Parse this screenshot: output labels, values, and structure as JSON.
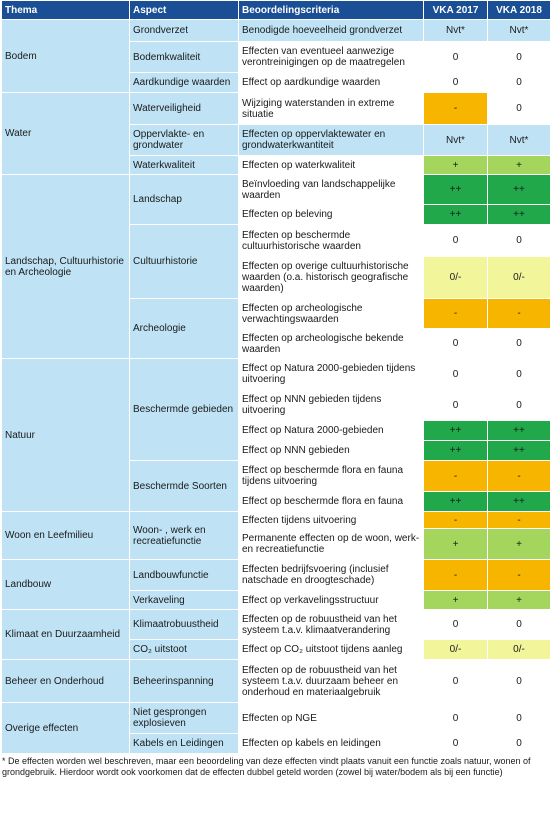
{
  "headers": {
    "thema": "Thema",
    "aspect": "Aspect",
    "criteria": "Beoordelingscriteria",
    "vka2017": "VKA 2017",
    "vka2018": "VKA 2018"
  },
  "colors": {
    "header": "#1a4e95",
    "light_blue": "#bfe3f5",
    "orange": "#f7b500",
    "light_green": "#a4d65e",
    "dark_green": "#21a84a",
    "yellow": "#f3f59a",
    "white": "#ffffff"
  },
  "groups": [
    {
      "thema": "Bodem",
      "aspects": [
        {
          "aspect": "Grondverzet",
          "criteria": [
            {
              "text": "Benodigde hoeveelheid grondverzet",
              "v2017": "Nvt*",
              "c2017": "blue",
              "v2018": "Nvt*",
              "c2018": "blue",
              "h": 22,
              "critBlue": true
            }
          ]
        },
        {
          "aspect": "Bodemkwaliteit",
          "criteria": [
            {
              "text": "Effecten van eventueel aanwezige verontreinigingen op de maatregelen",
              "v2017": "0",
              "c2017": "white",
              "v2018": "0",
              "c2018": "white",
              "h": 31
            }
          ]
        },
        {
          "aspect": "Aardkundige waarden",
          "criteria": [
            {
              "text": "Effect op aardkundige waarden",
              "v2017": "0",
              "c2017": "white",
              "v2018": "0",
              "c2018": "white",
              "h": 20
            }
          ]
        }
      ]
    },
    {
      "thema": "Water",
      "aspects": [
        {
          "aspect": "Waterveiligheid",
          "criteria": [
            {
              "text": "Wijziging waterstanden in extreme situatie",
              "v2017": "-",
              "c2017": "orange",
              "v2018": "0",
              "c2018": "white",
              "h": 32
            }
          ]
        },
        {
          "aspect": "Oppervlakte- en grondwater",
          "criteria": [
            {
              "text": "Effecten op oppervlaktewater en grondwaterkwantiteit",
              "v2017": "Nvt*",
              "c2017": "blue",
              "v2018": "Nvt*",
              "c2018": "blue",
              "h": 31,
              "critBlue": true
            }
          ]
        },
        {
          "aspect": "Waterkwaliteit",
          "criteria": [
            {
              "text": "Effecten op waterkwaliteit",
              "v2017": "+",
              "c2017": "lightgreen",
              "v2018": "+",
              "c2018": "lightgreen",
              "h": 19
            }
          ]
        }
      ]
    },
    {
      "thema": "Landschap, Cultuurhistorie en Archeologie",
      "aspects": [
        {
          "aspect": "Landschap",
          "criteria": [
            {
              "text": "Beïnvloeding van landschappelijke waarden",
              "v2017": "++",
              "c2017": "darkgreen",
              "v2018": "++",
              "c2018": "darkgreen",
              "h": 30
            },
            {
              "text": "Effecten op beleving",
              "v2017": "++",
              "c2017": "darkgreen",
              "v2018": "++",
              "c2018": "darkgreen",
              "h": 20
            }
          ]
        },
        {
          "aspect": "Cultuurhistorie",
          "criteria": [
            {
              "text": "Effecten op beschermde cultuurhistorische waarden",
              "v2017": "0",
              "c2017": "white",
              "v2018": "0",
              "c2018": "white",
              "h": 32
            },
            {
              "text": "Effecten op overige cultuurhistorische waarden (o.a. historisch geografische waarden)",
              "v2017": "0/-",
              "c2017": "yellow",
              "v2018": "0/-",
              "c2018": "yellow",
              "h": 42
            }
          ]
        },
        {
          "aspect": "Archeologie",
          "criteria": [
            {
              "text": "Effecten op archeologische verwachtingswaarden",
              "v2017": "-",
              "c2017": "orange",
              "v2018": "-",
              "c2018": "orange",
              "h": 30
            },
            {
              "text": "Effecten op archeologische bekende waarden",
              "v2017": "0",
              "c2017": "white",
              "v2018": "0",
              "c2018": "white",
              "h": 30
            }
          ]
        }
      ]
    },
    {
      "thema": "Natuur",
      "aspects": [
        {
          "aspect": "Beschermde gebieden",
          "criteria": [
            {
              "text": "Effect op Natura 2000-gebieden tijdens uitvoering",
              "v2017": "0",
              "c2017": "white",
              "v2018": "0",
              "c2018": "white",
              "h": 31
            },
            {
              "text": "Effect op NNN gebieden tijdens uitvoering",
              "v2017": "0",
              "c2017": "white",
              "v2018": "0",
              "c2018": "white",
              "h": 31
            },
            {
              "text": "Effect op Natura 2000-gebieden",
              "v2017": "++",
              "c2017": "darkgreen",
              "v2018": "++",
              "c2018": "darkgreen",
              "h": 20
            },
            {
              "text": "Effect op NNN gebieden",
              "v2017": "++",
              "c2017": "darkgreen",
              "v2018": "++",
              "c2018": "darkgreen",
              "h": 20
            }
          ]
        },
        {
          "aspect": "Beschermde Soorten",
          "criteria": [
            {
              "text": "Effect op beschermde flora en fauna tijdens uitvoering",
              "v2017": "-",
              "c2017": "orange",
              "v2018": "-",
              "c2018": "orange",
              "h": 31
            },
            {
              "text": "Effect op beschermde flora en fauna",
              "v2017": "++",
              "c2017": "darkgreen",
              "v2018": "++",
              "c2018": "darkgreen",
              "h": 20
            }
          ]
        }
      ]
    },
    {
      "thema": "Woon en Leefmilieu",
      "aspects": [
        {
          "aspect": "Woon- , werk en recreatiefunctie",
          "criteria": [
            {
              "text": "Effecten tijdens uitvoering",
              "v2017": "-",
              "c2017": "orange",
              "v2018": "-",
              "c2018": "orange",
              "h": 17
            },
            {
              "text": "Permanente effecten op de woon, werk- en recreatiefunctie",
              "v2017": "+",
              "c2017": "lightgreen",
              "v2018": "+",
              "c2018": "lightgreen",
              "h": 31
            }
          ]
        }
      ]
    },
    {
      "thema": "Landbouw",
      "aspects": [
        {
          "aspect": "Landbouwfunctie",
          "criteria": [
            {
              "text": "Effecten bedrijfsvoering (inclusief natschade en droogteschade)",
              "v2017": "-",
              "c2017": "orange",
              "v2018": "-",
              "c2018": "orange",
              "h": 31
            }
          ]
        },
        {
          "aspect": "Verkaveling",
          "criteria": [
            {
              "text": "Effect op verkavelingsstructuur",
              "v2017": "+",
              "c2017": "lightgreen",
              "v2018": "+",
              "c2018": "lightgreen",
              "h": 19
            }
          ]
        }
      ]
    },
    {
      "thema": "Klimaat en Duurzaamheid",
      "aspects": [
        {
          "aspect": "Klimaatrobuustheid",
          "criteria": [
            {
              "text": "Effecten op de robuustheid van het systeem t.a.v. klimaatverandering",
              "v2017": "0",
              "c2017": "white",
              "v2018": "0",
              "c2018": "white",
              "h": 30
            }
          ]
        },
        {
          "aspect": "CO₂ uitstoot",
          "criteria": [
            {
              "text": "Effect op CO₂ uitstoot tijdens aanleg",
              "v2017": "0/-",
              "c2017": "yellow",
              "v2018": "0/-",
              "c2018": "yellow",
              "h": 20
            }
          ]
        }
      ]
    },
    {
      "thema": "Beheer en Onderhoud",
      "aspects": [
        {
          "aspect": "Beheerinspanning",
          "criteria": [
            {
              "text": "Effecten op de robuustheid van het systeem t.a.v. duurzaam beheer en onderhoud en materiaalgebruik",
              "v2017": "0",
              "c2017": "white",
              "v2018": "0",
              "c2018": "white",
              "h": 43
            }
          ]
        }
      ]
    },
    {
      "thema": "Overige effecten",
      "aspects": [
        {
          "aspect": "Niet gesprongen explosieven",
          "criteria": [
            {
              "text": "Effecten op NGE",
              "v2017": "0",
              "c2017": "white",
              "v2018": "0",
              "c2018": "white",
              "h": 31
            }
          ]
        },
        {
          "aspect": "Kabels en Leidingen",
          "criteria": [
            {
              "text": "Effecten op kabels en leidingen",
              "v2017": "0",
              "c2017": "white",
              "v2018": "0",
              "c2018": "white",
              "h": 20
            }
          ]
        }
      ]
    }
  ],
  "footnote": "* De effecten worden wel beschreven, maar een beoordeling van deze effecten vindt plaats vanuit een functie zoals natuur, wonen of grondgebruik. Hierdoor wordt ook voorkomen dat de effecten dubbel geteld worden (zowel bij water/bodem als bij een functie)"
}
